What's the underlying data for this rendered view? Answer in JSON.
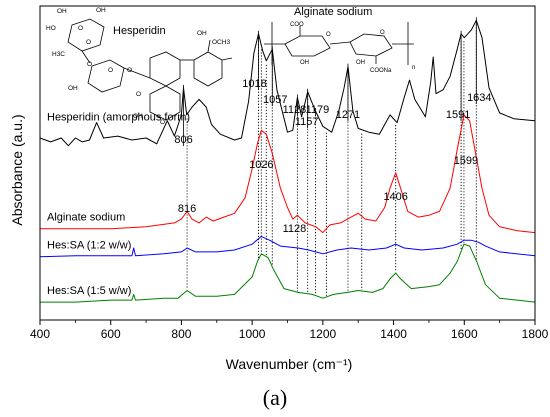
{
  "chart_data": {
    "type": "line",
    "xlabel": "Wavenumber (cm⁻¹)",
    "ylabel": "Absorbance (a.u.)",
    "xlim": [
      400,
      1800
    ],
    "x_ticks": [
      400,
      600,
      800,
      1000,
      1200,
      1400,
      1600,
      1800
    ],
    "y_ticks_shown": false,
    "grid": false,
    "panel_label": "(a)",
    "structures": [
      {
        "name": "Hesperidin",
        "labels": [
          "H3C",
          "OH",
          "HO",
          "OH",
          "O",
          "O",
          "O",
          "OH",
          "OCH3",
          "O",
          "OH",
          "O",
          "O",
          "OH",
          "O"
        ]
      },
      {
        "name": "Alginate sodium",
        "labels": [
          "COO",
          "OH",
          "OH",
          "COONa",
          "O",
          "O",
          "n"
        ]
      }
    ],
    "series": [
      {
        "name": "Hesperidin (amorphous form)",
        "color": "#000000",
        "peak_labels": [
          "806",
          "1018",
          "1057",
          "1128",
          "1157",
          "1179",
          "1271",
          "1591",
          "1634"
        ],
        "points": [
          [
            400,
            0.86
          ],
          [
            430,
            0.84
          ],
          [
            460,
            0.86
          ],
          [
            480,
            0.82
          ],
          [
            500,
            0.86
          ],
          [
            520,
            0.84
          ],
          [
            540,
            0.85
          ],
          [
            560,
            0.94
          ],
          [
            580,
            0.86
          ],
          [
            620,
            0.87
          ],
          [
            660,
            0.85
          ],
          [
            700,
            0.86
          ],
          [
            730,
            0.83
          ],
          [
            760,
            0.95
          ],
          [
            780,
            0.87
          ],
          [
            800,
            0.98
          ],
          [
            806,
            1.12
          ],
          [
            815,
            0.98
          ],
          [
            830,
            1.02
          ],
          [
            850,
            1.06
          ],
          [
            870,
            1.02
          ],
          [
            885,
            0.93
          ],
          [
            910,
            0.88
          ],
          [
            950,
            0.85
          ],
          [
            970,
            0.86
          ],
          [
            990,
            1.05
          ],
          [
            1005,
            1.3
          ],
          [
            1018,
            1.4
          ],
          [
            1030,
            1.31
          ],
          [
            1040,
            1.26
          ],
          [
            1057,
            1.32
          ],
          [
            1070,
            1.11
          ],
          [
            1085,
            1.0
          ],
          [
            1100,
            0.89
          ],
          [
            1115,
            0.9
          ],
          [
            1128,
            1.07
          ],
          [
            1140,
            0.97
          ],
          [
            1157,
            1.1
          ],
          [
            1170,
            1.04
          ],
          [
            1179,
            1.0
          ],
          [
            1200,
            0.92
          ],
          [
            1225,
            0.89
          ],
          [
            1245,
            1.0
          ],
          [
            1260,
            1.12
          ],
          [
            1271,
            1.23
          ],
          [
            1285,
            1.0
          ],
          [
            1300,
            0.91
          ],
          [
            1330,
            0.89
          ],
          [
            1360,
            0.88
          ],
          [
            1390,
            0.98
          ],
          [
            1410,
            0.94
          ],
          [
            1430,
            1.07
          ],
          [
            1445,
            1.16
          ],
          [
            1460,
            1.06
          ],
          [
            1490,
            0.97
          ],
          [
            1505,
            1.15
          ],
          [
            1512,
            1.28
          ],
          [
            1520,
            1.09
          ],
          [
            1540,
            1.11
          ],
          [
            1560,
            1.18
          ],
          [
            1580,
            1.32
          ],
          [
            1591,
            1.4
          ],
          [
            1600,
            1.38
          ],
          [
            1620,
            1.42
          ],
          [
            1634,
            1.47
          ],
          [
            1650,
            1.38
          ],
          [
            1670,
            1.12
          ],
          [
            1700,
            0.99
          ],
          [
            1740,
            0.96
          ],
          [
            1800,
            0.95
          ]
        ]
      },
      {
        "name": "Alginate sodium",
        "color": "#ff0000",
        "peak_labels": [
          "816",
          "1026",
          "1128",
          "1406",
          "1599"
        ],
        "points": [
          [
            400,
            0.39
          ],
          [
            500,
            0.39
          ],
          [
            600,
            0.39
          ],
          [
            700,
            0.4
          ],
          [
            780,
            0.42
          ],
          [
            800,
            0.44
          ],
          [
            816,
            0.48
          ],
          [
            830,
            0.44
          ],
          [
            850,
            0.42
          ],
          [
            870,
            0.45
          ],
          [
            890,
            0.43
          ],
          [
            920,
            0.45
          ],
          [
            950,
            0.47
          ],
          [
            980,
            0.55
          ],
          [
            1000,
            0.7
          ],
          [
            1015,
            0.83
          ],
          [
            1026,
            0.9
          ],
          [
            1040,
            0.88
          ],
          [
            1057,
            0.78
          ],
          [
            1080,
            0.6
          ],
          [
            1100,
            0.5
          ],
          [
            1115,
            0.44
          ],
          [
            1128,
            0.46
          ],
          [
            1150,
            0.42
          ],
          [
            1180,
            0.4
          ],
          [
            1200,
            0.37
          ],
          [
            1220,
            0.41
          ],
          [
            1250,
            0.42
          ],
          [
            1280,
            0.45
          ],
          [
            1300,
            0.47
          ],
          [
            1320,
            0.44
          ],
          [
            1350,
            0.43
          ],
          [
            1375,
            0.5
          ],
          [
            1390,
            0.6
          ],
          [
            1406,
            0.68
          ],
          [
            1420,
            0.6
          ],
          [
            1440,
            0.48
          ],
          [
            1470,
            0.45
          ],
          [
            1500,
            0.46
          ],
          [
            1530,
            0.48
          ],
          [
            1560,
            0.6
          ],
          [
            1580,
            0.8
          ],
          [
            1599,
            0.98
          ],
          [
            1615,
            0.95
          ],
          [
            1630,
            0.8
          ],
          [
            1650,
            0.6
          ],
          [
            1670,
            0.46
          ],
          [
            1700,
            0.4
          ],
          [
            1750,
            0.38
          ],
          [
            1800,
            0.37
          ]
        ]
      },
      {
        "name": "Hes:SA (1:2 w/w)",
        "color": "#0000ff",
        "peak_labels": [],
        "points": [
          [
            400,
            0.245
          ],
          [
            500,
            0.25
          ],
          [
            600,
            0.25
          ],
          [
            660,
            0.25
          ],
          [
            665,
            0.29
          ],
          [
            670,
            0.25
          ],
          [
            750,
            0.26
          ],
          [
            800,
            0.27
          ],
          [
            816,
            0.29
          ],
          [
            840,
            0.27
          ],
          [
            900,
            0.27
          ],
          [
            950,
            0.28
          ],
          [
            1000,
            0.31
          ],
          [
            1026,
            0.35
          ],
          [
            1050,
            0.33
          ],
          [
            1080,
            0.3
          ],
          [
            1130,
            0.29
          ],
          [
            1160,
            0.28
          ],
          [
            1200,
            0.26
          ],
          [
            1240,
            0.28
          ],
          [
            1280,
            0.29
          ],
          [
            1330,
            0.28
          ],
          [
            1380,
            0.29
          ],
          [
            1406,
            0.31
          ],
          [
            1430,
            0.29
          ],
          [
            1480,
            0.28
          ],
          [
            1540,
            0.29
          ],
          [
            1580,
            0.31
          ],
          [
            1599,
            0.33
          ],
          [
            1620,
            0.33
          ],
          [
            1640,
            0.32
          ],
          [
            1660,
            0.3
          ],
          [
            1700,
            0.27
          ],
          [
            1800,
            0.25
          ]
        ]
      },
      {
        "name": "Hes:SA (1:5 w/w)",
        "color": "#008000",
        "peak_labels": [],
        "points": [
          [
            400,
            0.01
          ],
          [
            500,
            0.01
          ],
          [
            600,
            0.02
          ],
          [
            660,
            0.02
          ],
          [
            665,
            0.05
          ],
          [
            670,
            0.02
          ],
          [
            750,
            0.03
          ],
          [
            790,
            0.03
          ],
          [
            816,
            0.07
          ],
          [
            840,
            0.04
          ],
          [
            900,
            0.04
          ],
          [
            950,
            0.05
          ],
          [
            1000,
            0.14
          ],
          [
            1015,
            0.22
          ],
          [
            1026,
            0.26
          ],
          [
            1045,
            0.24
          ],
          [
            1060,
            0.18
          ],
          [
            1090,
            0.08
          ],
          [
            1130,
            0.06
          ],
          [
            1170,
            0.05
          ],
          [
            1200,
            0.03
          ],
          [
            1230,
            0.05
          ],
          [
            1270,
            0.06
          ],
          [
            1300,
            0.07
          ],
          [
            1340,
            0.06
          ],
          [
            1370,
            0.08
          ],
          [
            1390,
            0.13
          ],
          [
            1406,
            0.16
          ],
          [
            1420,
            0.13
          ],
          [
            1450,
            0.08
          ],
          [
            1500,
            0.09
          ],
          [
            1530,
            0.1
          ],
          [
            1560,
            0.16
          ],
          [
            1580,
            0.22
          ],
          [
            1599,
            0.31
          ],
          [
            1615,
            0.3
          ],
          [
            1635,
            0.22
          ],
          [
            1660,
            0.1
          ],
          [
            1700,
            0.03
          ],
          [
            1800,
            0.01
          ]
        ]
      }
    ],
    "reference_lines_x": [
      816,
      1018,
      1026,
      1040,
      1057,
      1128,
      1157,
      1179,
      1210,
      1271,
      1310,
      1406,
      1591,
      1599,
      1634
    ]
  }
}
